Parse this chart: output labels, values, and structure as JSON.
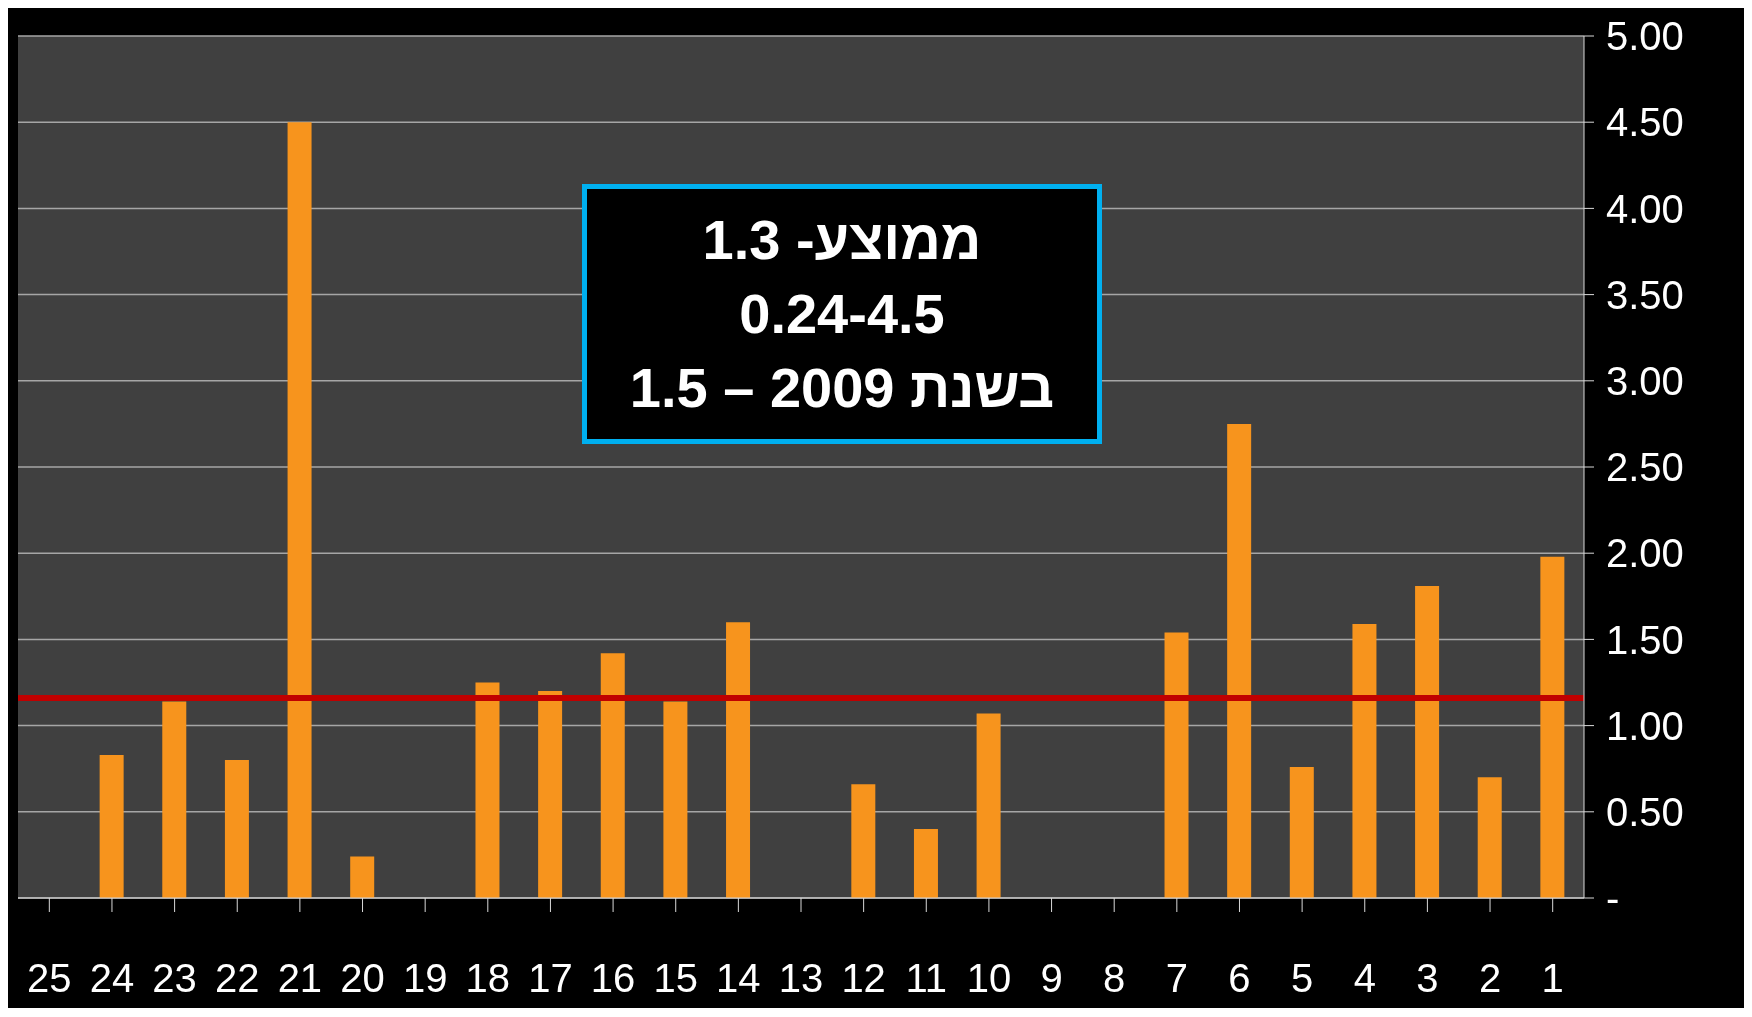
{
  "chart_data": {
    "type": "bar",
    "categories": [
      "25",
      "24",
      "23",
      "22",
      "21",
      "20",
      "19",
      "18",
      "17",
      "16",
      "15",
      "14",
      "13",
      "12",
      "11",
      "10",
      "9",
      "8",
      "7",
      "6",
      "5",
      "4",
      "3",
      "2",
      "1"
    ],
    "values": [
      null,
      0.83,
      1.14,
      0.8,
      4.5,
      0.24,
      null,
      1.25,
      1.2,
      1.42,
      1.14,
      1.6,
      null,
      0.66,
      0.4,
      1.07,
      null,
      null,
      1.54,
      2.75,
      0.76,
      1.59,
      1.81,
      0.7,
      1.98
    ],
    "color": "#f7941d",
    "ylim": [
      0,
      5
    ],
    "yticks": [
      {
        "value": 0,
        "label": "-"
      },
      {
        "value": 0.5,
        "label": "0.50"
      },
      {
        "value": 1,
        "label": "1.00"
      },
      {
        "value": 1.5,
        "label": "1.50"
      },
      {
        "value": 2,
        "label": "2.00"
      },
      {
        "value": 2.5,
        "label": "2.50"
      },
      {
        "value": 3,
        "label": "3.00"
      },
      {
        "value": 3.5,
        "label": "3.50"
      },
      {
        "value": 4,
        "label": "4.00"
      },
      {
        "value": 4.5,
        "label": "4.50"
      },
      {
        "value": 5,
        "label": "5.00"
      }
    ],
    "grid": "y",
    "ref_lines": [
      {
        "axis": "y",
        "value": 1.16,
        "color": "#c00000"
      }
    ],
    "annotations": [
      "ממוצע- 1.3",
      "0.24-4.5",
      "בשנת 2009 – 1.5"
    ]
  }
}
